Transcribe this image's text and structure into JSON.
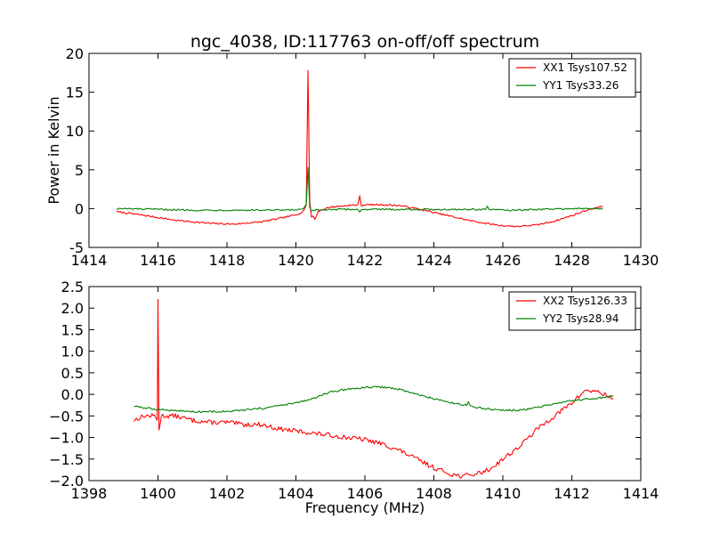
{
  "title": "ngc_4038, ID:117763 on-off/off spectrum",
  "colors": {
    "xx": "#ff0000",
    "yy": "#008000"
  },
  "chart_data": [
    {
      "type": "line",
      "title": "ngc_4038, ID:117763 on-off/off spectrum",
      "xlabel": "",
      "ylabel": "Power in Kelvin",
      "xlim": [
        1414,
        1430
      ],
      "ylim": [
        -5,
        20
      ],
      "xticks": [
        "1414",
        "1416",
        "1418",
        "1420",
        "1422",
        "1424",
        "1426",
        "1428",
        "1430"
      ],
      "yticks": [
        "-5",
        "0",
        "5",
        "10",
        "15",
        "20"
      ],
      "grid": false,
      "legend_position": "top-right",
      "series": [
        {
          "name": "XX1 Tsys107.52",
          "color": "#ff0000",
          "x": [
            1414.8,
            1415.5,
            1416.5,
            1417.5,
            1418.2,
            1419.0,
            1419.6,
            1420.0,
            1420.2,
            1420.3,
            1420.35,
            1420.4,
            1420.45,
            1420.5,
            1420.55,
            1420.65,
            1421.0,
            1421.5,
            1421.8,
            1421.85,
            1421.9,
            1422.0,
            1422.5,
            1423.0,
            1423.5,
            1424.0,
            1424.5,
            1425.0,
            1425.5,
            1426.0,
            1426.4,
            1427.0,
            1427.5,
            1428.0,
            1428.5,
            1428.9
          ],
          "values": [
            -0.4,
            -0.8,
            -1.5,
            -1.9,
            -2.0,
            -1.7,
            -1.2,
            -0.8,
            -0.4,
            0.5,
            17.8,
            1.0,
            -1.2,
            -0.9,
            -1.4,
            -0.3,
            0.2,
            0.4,
            0.5,
            1.6,
            0.4,
            0.5,
            0.5,
            0.4,
            0.0,
            -0.5,
            -1.0,
            -1.5,
            -1.9,
            -2.2,
            -2.3,
            -2.1,
            -1.6,
            -0.9,
            -0.1,
            0.3
          ]
        },
        {
          "name": "YY1 Tsys33.26",
          "color": "#008000",
          "x": [
            1414.8,
            1416.0,
            1417.0,
            1418.0,
            1419.0,
            1419.8,
            1420.2,
            1420.3,
            1420.35,
            1420.4,
            1420.45,
            1420.55,
            1421.0,
            1421.8,
            1421.85,
            1421.9,
            1422.5,
            1423.5,
            1424.5,
            1425.5,
            1425.55,
            1425.6,
            1426.0,
            1426.5,
            1427.0,
            1428.0,
            1428.9
          ],
          "values": [
            0.0,
            -0.1,
            -0.2,
            -0.2,
            -0.2,
            -0.2,
            -0.1,
            0.5,
            5.3,
            0.2,
            -0.4,
            -0.2,
            -0.1,
            -0.1,
            -0.5,
            -0.1,
            -0.1,
            -0.1,
            -0.1,
            -0.1,
            0.3,
            -0.1,
            -0.2,
            -0.2,
            -0.1,
            0.0,
            0.0
          ]
        }
      ]
    },
    {
      "type": "line",
      "title": "",
      "xlabel": "Frequency (MHz)",
      "ylabel": "",
      "xlim": [
        1398,
        1414
      ],
      "ylim": [
        -2.0,
        2.5
      ],
      "xticks": [
        "1398",
        "1400",
        "1402",
        "1404",
        "1406",
        "1408",
        "1410",
        "1412",
        "1414"
      ],
      "yticks": [
        "−2.0",
        "−1.5",
        "−1.0",
        "−0.5",
        "0.0",
        "0.5",
        "1.0",
        "1.5",
        "2.0",
        "2.5"
      ],
      "grid": false,
      "legend_position": "top-right",
      "series": [
        {
          "name": "XX2 Tsys126.33",
          "color": "#ff0000",
          "x": [
            1399.3,
            1399.6,
            1399.9,
            1399.98,
            1400.0,
            1400.03,
            1400.1,
            1400.5,
            1401.0,
            1401.5,
            1402.0,
            1402.5,
            1403.0,
            1403.5,
            1404.0,
            1404.5,
            1405.0,
            1405.5,
            1406.0,
            1406.5,
            1407.0,
            1407.5,
            1408.0,
            1408.5,
            1408.8,
            1409.2,
            1409.6,
            1410.0,
            1410.5,
            1411.0,
            1411.5,
            1412.0,
            1412.4,
            1412.8,
            1413.2
          ],
          "values": [
            -0.6,
            -0.5,
            -0.5,
            -0.6,
            2.2,
            -0.8,
            -0.5,
            -0.5,
            -0.6,
            -0.65,
            -0.65,
            -0.7,
            -0.7,
            -0.8,
            -0.85,
            -0.9,
            -0.95,
            -1.0,
            -1.05,
            -1.15,
            -1.3,
            -1.5,
            -1.7,
            -1.85,
            -1.9,
            -1.85,
            -1.75,
            -1.5,
            -1.2,
            -0.8,
            -0.5,
            -0.2,
            0.1,
            0.05,
            -0.1
          ]
        },
        {
          "name": "YY2 Tsys28.94",
          "color": "#008000",
          "x": [
            1399.3,
            1400.0,
            1401.0,
            1402.0,
            1403.0,
            1404.0,
            1404.5,
            1405.0,
            1405.5,
            1406.0,
            1406.5,
            1407.0,
            1407.5,
            1408.0,
            1408.5,
            1408.95,
            1409.0,
            1409.05,
            1409.5,
            1410.0,
            1410.5,
            1411.0,
            1412.0,
            1413.2
          ],
          "values": [
            -0.28,
            -0.35,
            -0.4,
            -0.4,
            -0.33,
            -0.2,
            -0.1,
            0.05,
            0.12,
            0.16,
            0.17,
            0.12,
            0.0,
            -0.1,
            -0.2,
            -0.25,
            -0.17,
            -0.28,
            -0.33,
            -0.37,
            -0.37,
            -0.3,
            -0.15,
            -0.05
          ]
        }
      ]
    }
  ]
}
